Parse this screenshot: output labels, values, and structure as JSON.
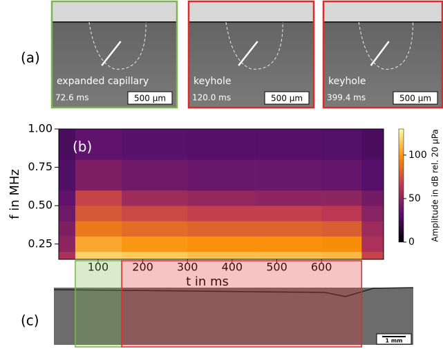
{
  "panels": {
    "a": {
      "label": "(a)",
      "images": [
        {
          "border_color": "#7ab648",
          "annotation": "expanded capillary",
          "time": "72.6 ms",
          "scale": "500 µm"
        },
        {
          "border_color": "#e02a2a",
          "annotation": "keyhole",
          "time": "120.0 ms",
          "scale": "500 µm"
        },
        {
          "border_color": "#e02a2a",
          "annotation": "keyhole",
          "time": "399.4 ms",
          "scale": "500 µm"
        }
      ]
    },
    "c": {
      "label": "(c)",
      "scale": "1 mm"
    }
  },
  "chart_data": {
    "type": "heatmap",
    "panel_label": "(b)",
    "x_label": "t in ms",
    "y_label": "f in MHz",
    "x_edges": [
      12,
      49,
      153,
      300,
      450,
      600,
      690,
      739
    ],
    "y_edges": [
      0.15,
      0.2,
      0.3,
      0.4,
      0.5,
      0.6,
      0.8,
      1.0
    ],
    "z": [
      [
        60,
        118,
        115,
        112,
        112,
        110,
        70
      ],
      [
        50,
        105,
        100,
        98,
        98,
        97,
        60
      ],
      [
        45,
        90,
        85,
        82,
        82,
        80,
        55
      ],
      [
        40,
        78,
        72,
        68,
        68,
        65,
        48
      ],
      [
        35,
        70,
        55,
        52,
        50,
        50,
        42
      ],
      [
        30,
        45,
        40,
        38,
        38,
        37,
        32
      ],
      [
        28,
        35,
        33,
        32,
        32,
        31,
        28
      ]
    ],
    "xlim": [
      12,
      739
    ],
    "xticks": [
      100,
      200,
      300,
      400,
      500,
      600
    ],
    "ylim": [
      0.15,
      1.0
    ],
    "yticks": [
      0.25,
      {
        "value": 0.5,
        "label": "0.50"
      },
      0.75,
      {
        "value": 1.0,
        "label": "1.00"
      }
    ],
    "colormap": "inferno",
    "colorbar": {
      "label": "Amplitude in dB rel. 20 µPa",
      "lim": [
        0,
        130
      ],
      "ticks": [
        0,
        50,
        100
      ]
    },
    "regions": [
      {
        "color": "#7ab648",
        "x": [
          49,
          153
        ]
      },
      {
        "color": "#e02a2a",
        "x": [
          153,
          690
        ]
      }
    ]
  }
}
